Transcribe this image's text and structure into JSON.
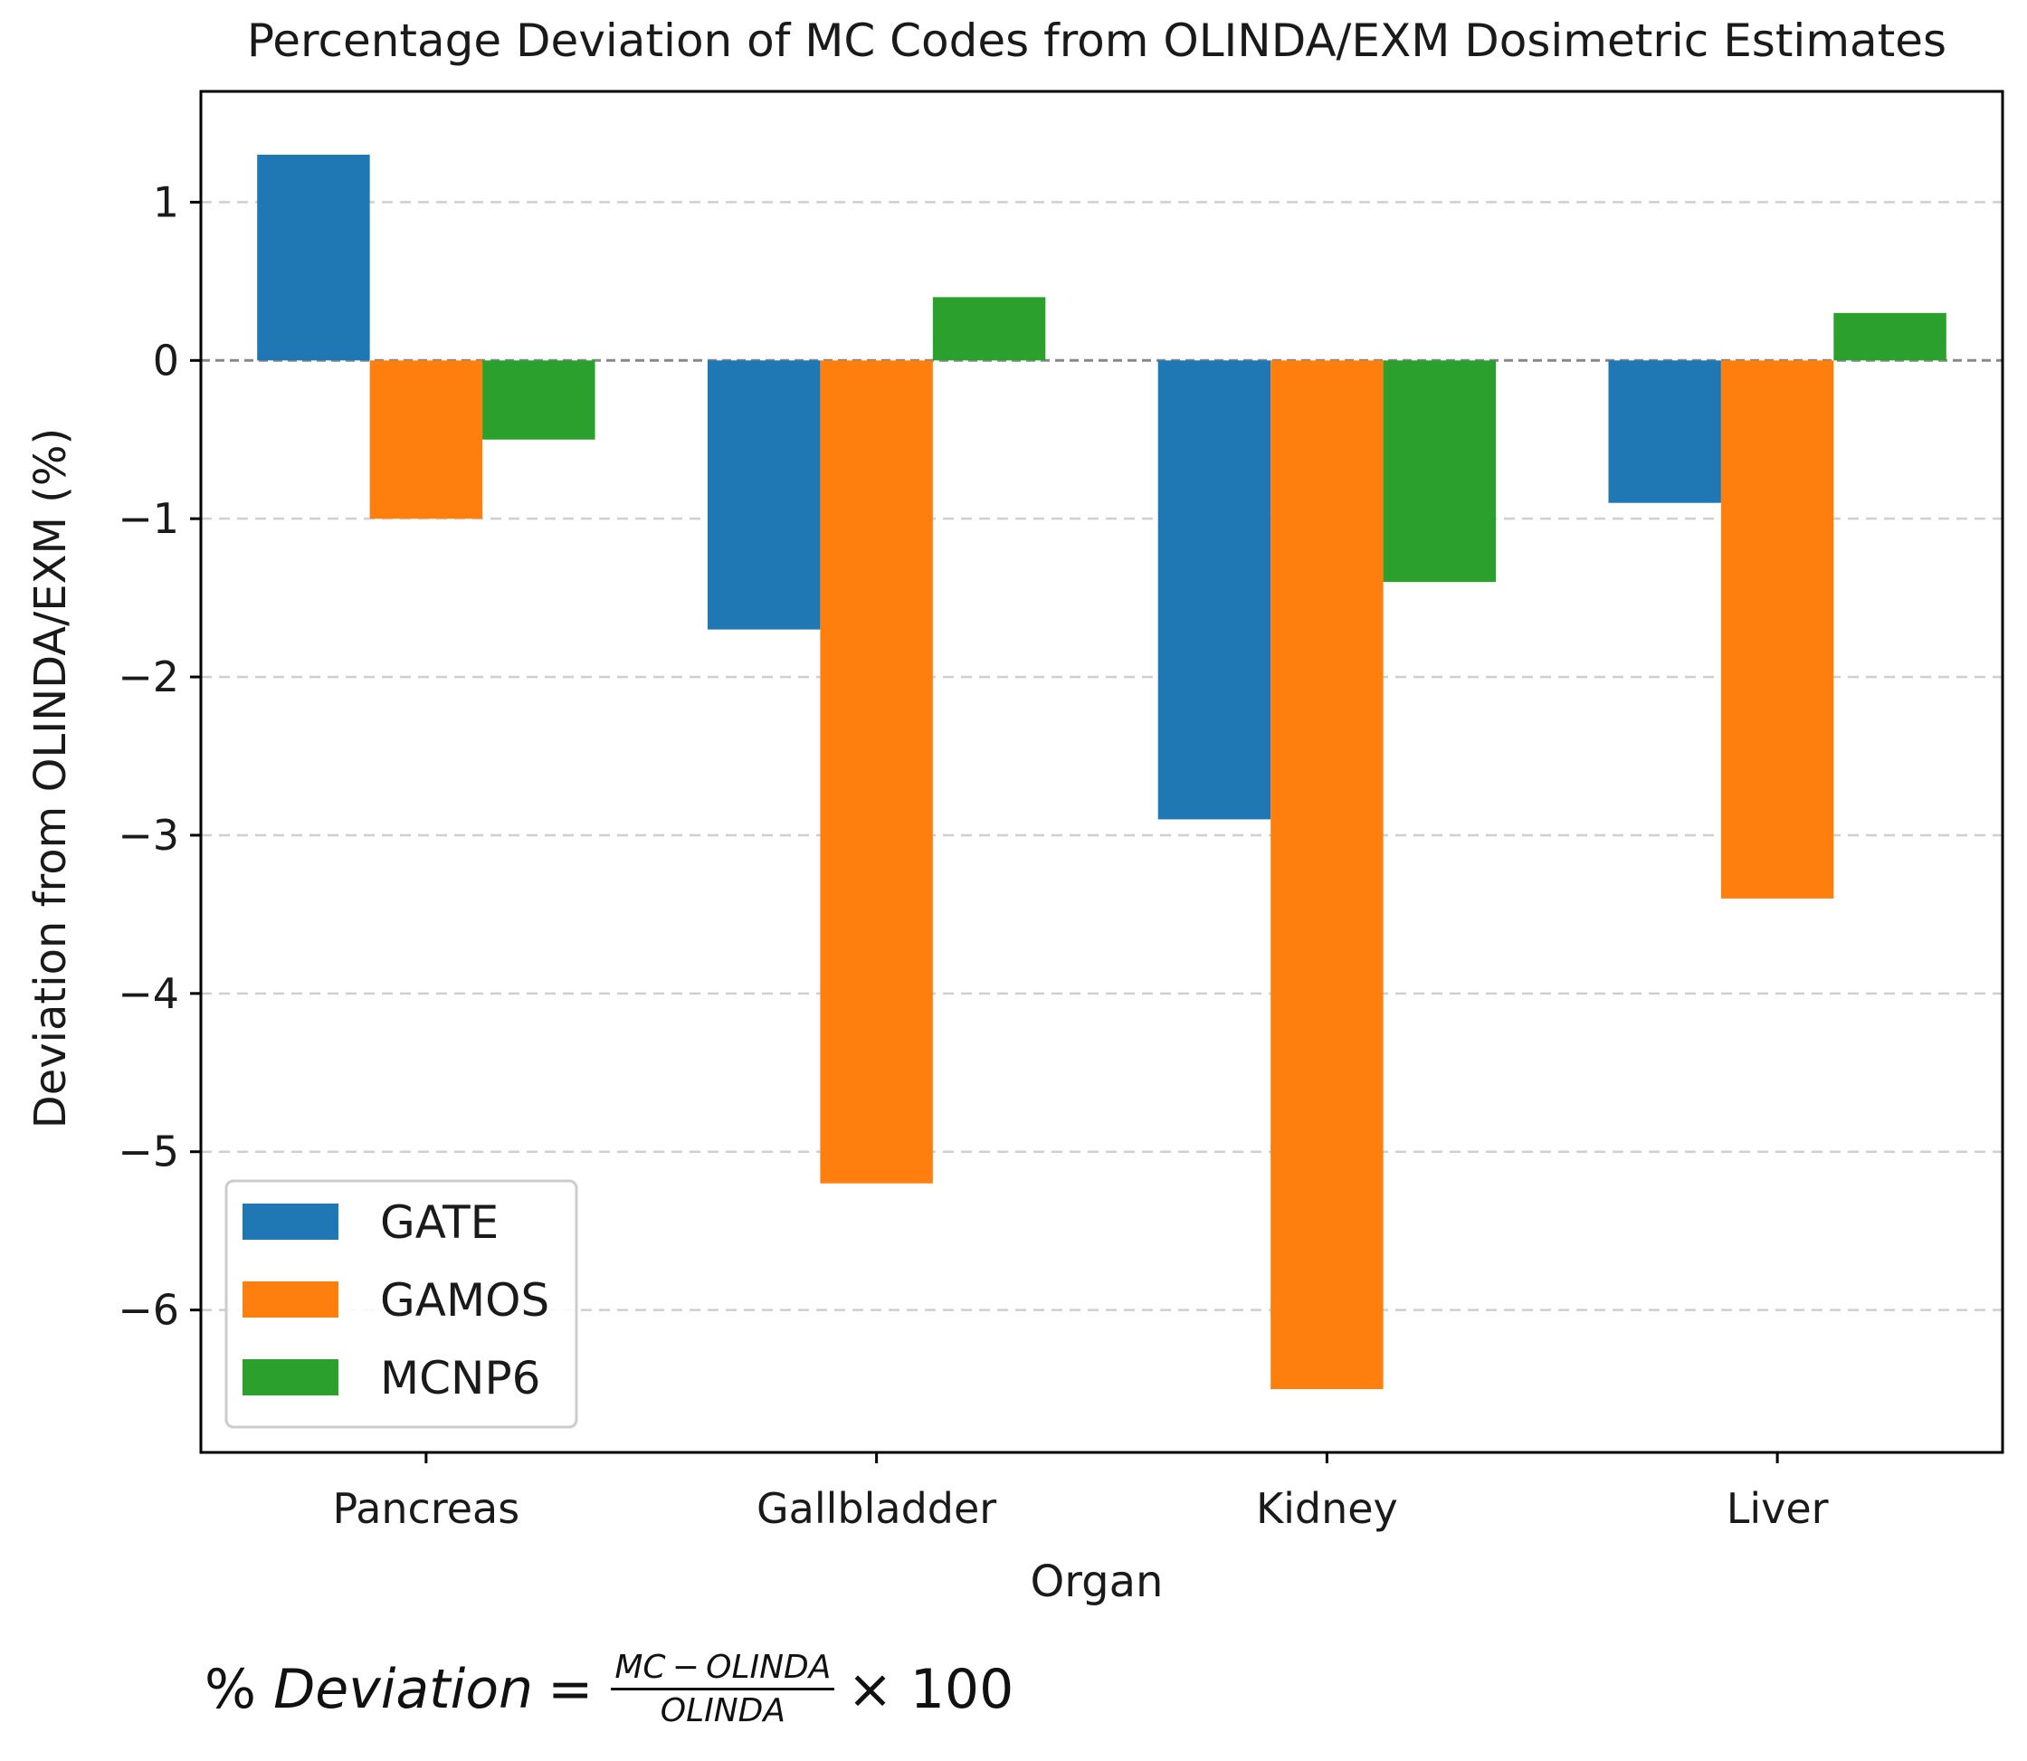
{
  "chart_data": {
    "type": "bar",
    "title": "Percentage Deviation of MC Codes from OLINDA/EXM Dosimetric Estimates",
    "xlabel": "Organ",
    "ylabel": "Deviation from OLINDA/EXM (%)",
    "categories": [
      "Pancreas",
      "Gallbladder",
      "Kidney",
      "Liver"
    ],
    "series": [
      {
        "name": "GATE",
        "color": "#1f77b4",
        "values": [
          1.3,
          -1.7,
          -2.9,
          -0.9
        ]
      },
      {
        "name": "GAMOS",
        "color": "#ff7f0e",
        "values": [
          -1.0,
          -5.2,
          -6.5,
          -3.4
        ]
      },
      {
        "name": "MCNP6",
        "color": "#2ca02c",
        "values": [
          -0.5,
          0.4,
          -1.4,
          0.3
        ]
      }
    ],
    "ylim": [
      -6.9,
      1.7
    ],
    "yticks": [
      1,
      0,
      -1,
      -2,
      -3,
      -4,
      -5,
      -6
    ],
    "ytick_labels": [
      "1",
      "0",
      "−1",
      "−2",
      "−3",
      "−4",
      "−5",
      "−6"
    ],
    "grid": "y, dashed",
    "zero_line": "dashed",
    "legend_position": "lower-left"
  },
  "formula": {
    "lhs_prefix": "% ",
    "lhs_var": "Deviation",
    "equals": "=",
    "numerator": "MC − OLINDA",
    "denominator": "OLINDA",
    "multiplier": "× 100"
  }
}
